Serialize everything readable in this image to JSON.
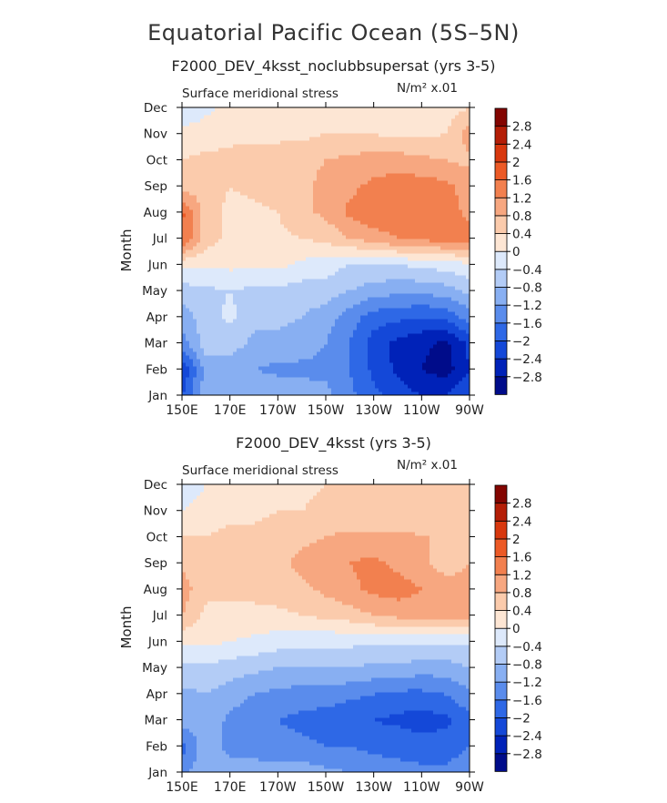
{
  "figure": {
    "title": "Equatorial Pacific Ocean (5S–5N)"
  },
  "colorbar": {
    "levels": [
      -3.2,
      -2.8,
      -2.4,
      -2.0,
      -1.6,
      -1.2,
      -0.8,
      -0.4,
      0.0,
      0.4,
      0.8,
      1.2,
      1.6,
      2.0,
      2.4,
      2.8,
      3.2
    ],
    "colors": [
      "#000c8a",
      "#0022b8",
      "#1448d8",
      "#2e68e6",
      "#5a8cec",
      "#88aff2",
      "#b3ccf6",
      "#dde9fb",
      "#fde6d4",
      "#fbcbac",
      "#f7a780",
      "#f2804f",
      "#ec5a26",
      "#d8380e",
      "#b41e07",
      "#830501"
    ],
    "labels": [
      "2.8",
      "2.4",
      "2",
      "1.6",
      "1.2",
      "0.8",
      "0.4",
      "0",
      "−0.4",
      "−0.8",
      "−1.2",
      "−1.6",
      "−2",
      "−2.4",
      "−2.8"
    ]
  },
  "chart_data": [
    {
      "type": "heatmap",
      "title": "F2000_DEV_4ksst_noclubbsupersat (yrs 3-5)",
      "left_label": "Surface meridional stress",
      "units": "N/m² x.01",
      "xlabel": "",
      "ylabel": "Month",
      "x_ticks": [
        "150E",
        "170E",
        "170W",
        "150W",
        "130W",
        "110W",
        "90W"
      ],
      "x_values": [
        150,
        170,
        190,
        210,
        230,
        250,
        270
      ],
      "y_ticks": [
        "Jan",
        "Feb",
        "Mar",
        "Apr",
        "May",
        "Jun",
        "Jul",
        "Aug",
        "Sep",
        "Oct",
        "Nov",
        "Dec"
      ],
      "values": [
        [
          -2.0,
          -1.0,
          -0.8,
          -0.8,
          -0.9,
          -1.0,
          -1.1,
          -1.5,
          -1.9,
          -2.2,
          -2.4,
          -2.4,
          -2.0
        ],
        [
          -2.4,
          -1.0,
          -1.0,
          -1.2,
          -1.3,
          -1.3,
          -1.3,
          -1.6,
          -2.1,
          -2.5,
          -2.8,
          -3.0,
          -2.4
        ],
        [
          -1.4,
          -0.6,
          -0.6,
          -0.9,
          -0.9,
          -1.0,
          -1.2,
          -1.6,
          -2.2,
          -2.5,
          -2.7,
          -2.9,
          -2.3
        ],
        [
          -1.0,
          -0.6,
          -0.3,
          -0.7,
          -0.7,
          -0.8,
          -1.0,
          -1.4,
          -1.8,
          -1.9,
          -2.0,
          -1.9,
          -1.4
        ],
        [
          -0.6,
          -0.5,
          -0.4,
          -0.5,
          -0.5,
          -0.6,
          -0.6,
          -0.8,
          -1.0,
          -1.1,
          -1.1,
          -1.0,
          -0.7
        ],
        [
          0.1,
          0.1,
          0.1,
          0.1,
          0.1,
          -0.1,
          -0.2,
          -0.4,
          -0.4,
          -0.4,
          -0.3,
          -0.2,
          -0.1
        ],
        [
          1.6,
          0.6,
          0.3,
          0.3,
          0.3,
          0.4,
          0.5,
          0.8,
          1.0,
          1.2,
          1.3,
          1.4,
          1.4
        ],
        [
          1.7,
          0.6,
          0.3,
          0.3,
          0.4,
          0.7,
          0.9,
          1.3,
          1.5,
          1.5,
          1.5,
          1.4,
          1.1
        ],
        [
          0.6,
          0.6,
          0.4,
          0.5,
          0.6,
          0.7,
          0.9,
          1.1,
          1.3,
          1.4,
          1.4,
          1.3,
          1.0
        ],
        [
          0.4,
          0.5,
          0.5,
          0.6,
          0.6,
          0.7,
          0.8,
          0.9,
          1.0,
          1.0,
          0.9,
          0.8,
          0.7
        ],
        [
          0.1,
          0.2,
          0.3,
          0.3,
          0.3,
          0.3,
          0.4,
          0.4,
          0.4,
          0.3,
          0.3,
          0.4,
          1.0
        ],
        [
          -0.3,
          -0.1,
          0.1,
          0.2,
          0.2,
          0.2,
          0.2,
          0.2,
          0.2,
          0.1,
          0.1,
          0.2,
          0.4
        ]
      ]
    },
    {
      "type": "heatmap",
      "title": "F2000_DEV_4ksst (yrs 3-5)",
      "left_label": "Surface meridional stress",
      "units": "N/m² x.01",
      "xlabel": "",
      "ylabel": "Month",
      "x_ticks": [
        "150E",
        "170E",
        "170W",
        "150W",
        "130W",
        "110W",
        "90W"
      ],
      "x_values": [
        150,
        170,
        190,
        210,
        230,
        250,
        270
      ],
      "y_ticks": [
        "Jan",
        "Feb",
        "Mar",
        "Apr",
        "May",
        "Jun",
        "Jul",
        "Aug",
        "Sep",
        "Oct",
        "Nov",
        "Dec"
      ],
      "values": [
        [
          -1.3,
          -0.9,
          -0.9,
          -0.9,
          -1.0,
          -1.0,
          -1.1,
          -1.2,
          -1.4,
          -1.5,
          -1.5,
          -1.5,
          -1.4
        ],
        [
          -1.8,
          -0.9,
          -1.4,
          -1.5,
          -1.5,
          -1.5,
          -1.6,
          -1.6,
          -1.7,
          -1.7,
          -1.8,
          -1.8,
          -1.6
        ],
        [
          -1.0,
          -0.9,
          -1.3,
          -1.5,
          -1.6,
          -1.7,
          -1.8,
          -1.9,
          -2.0,
          -2.1,
          -2.2,
          -2.1,
          -1.7
        ],
        [
          -0.9,
          -0.8,
          -1.0,
          -1.2,
          -1.3,
          -1.4,
          -1.4,
          -1.5,
          -1.6,
          -1.7,
          -1.7,
          -1.6,
          -1.3
        ],
        [
          -0.5,
          -0.5,
          -0.6,
          -0.7,
          -0.8,
          -0.8,
          -0.8,
          -0.8,
          -0.9,
          -0.9,
          -1.0,
          -1.0,
          -0.8
        ],
        [
          0.1,
          0.1,
          0.0,
          -0.1,
          -0.2,
          -0.3,
          -0.3,
          -0.3,
          -0.3,
          -0.3,
          -0.3,
          -0.3,
          -0.3
        ],
        [
          0.8,
          0.3,
          0.3,
          0.3,
          0.3,
          0.4,
          0.5,
          0.6,
          0.8,
          0.9,
          1.0,
          1.0,
          0.9
        ],
        [
          1.0,
          0.5,
          0.5,
          0.5,
          0.6,
          0.7,
          0.9,
          1.1,
          1.3,
          1.4,
          1.2,
          1.0,
          0.9
        ],
        [
          0.7,
          0.6,
          0.6,
          0.6,
          0.7,
          0.9,
          1.1,
          1.2,
          1.3,
          1.1,
          0.9,
          0.6,
          0.8
        ],
        [
          0.4,
          0.4,
          0.5,
          0.5,
          0.6,
          0.7,
          0.8,
          0.9,
          0.9,
          0.9,
          0.8,
          0.8,
          0.8
        ],
        [
          0.0,
          0.2,
          0.3,
          0.3,
          0.4,
          0.4,
          0.5,
          0.5,
          0.5,
          0.5,
          0.6,
          0.6,
          0.7
        ],
        [
          -0.3,
          0.0,
          0.1,
          0.2,
          0.3,
          0.3,
          0.4,
          0.4,
          0.4,
          0.5,
          0.5,
          0.6,
          0.6
        ]
      ]
    }
  ]
}
